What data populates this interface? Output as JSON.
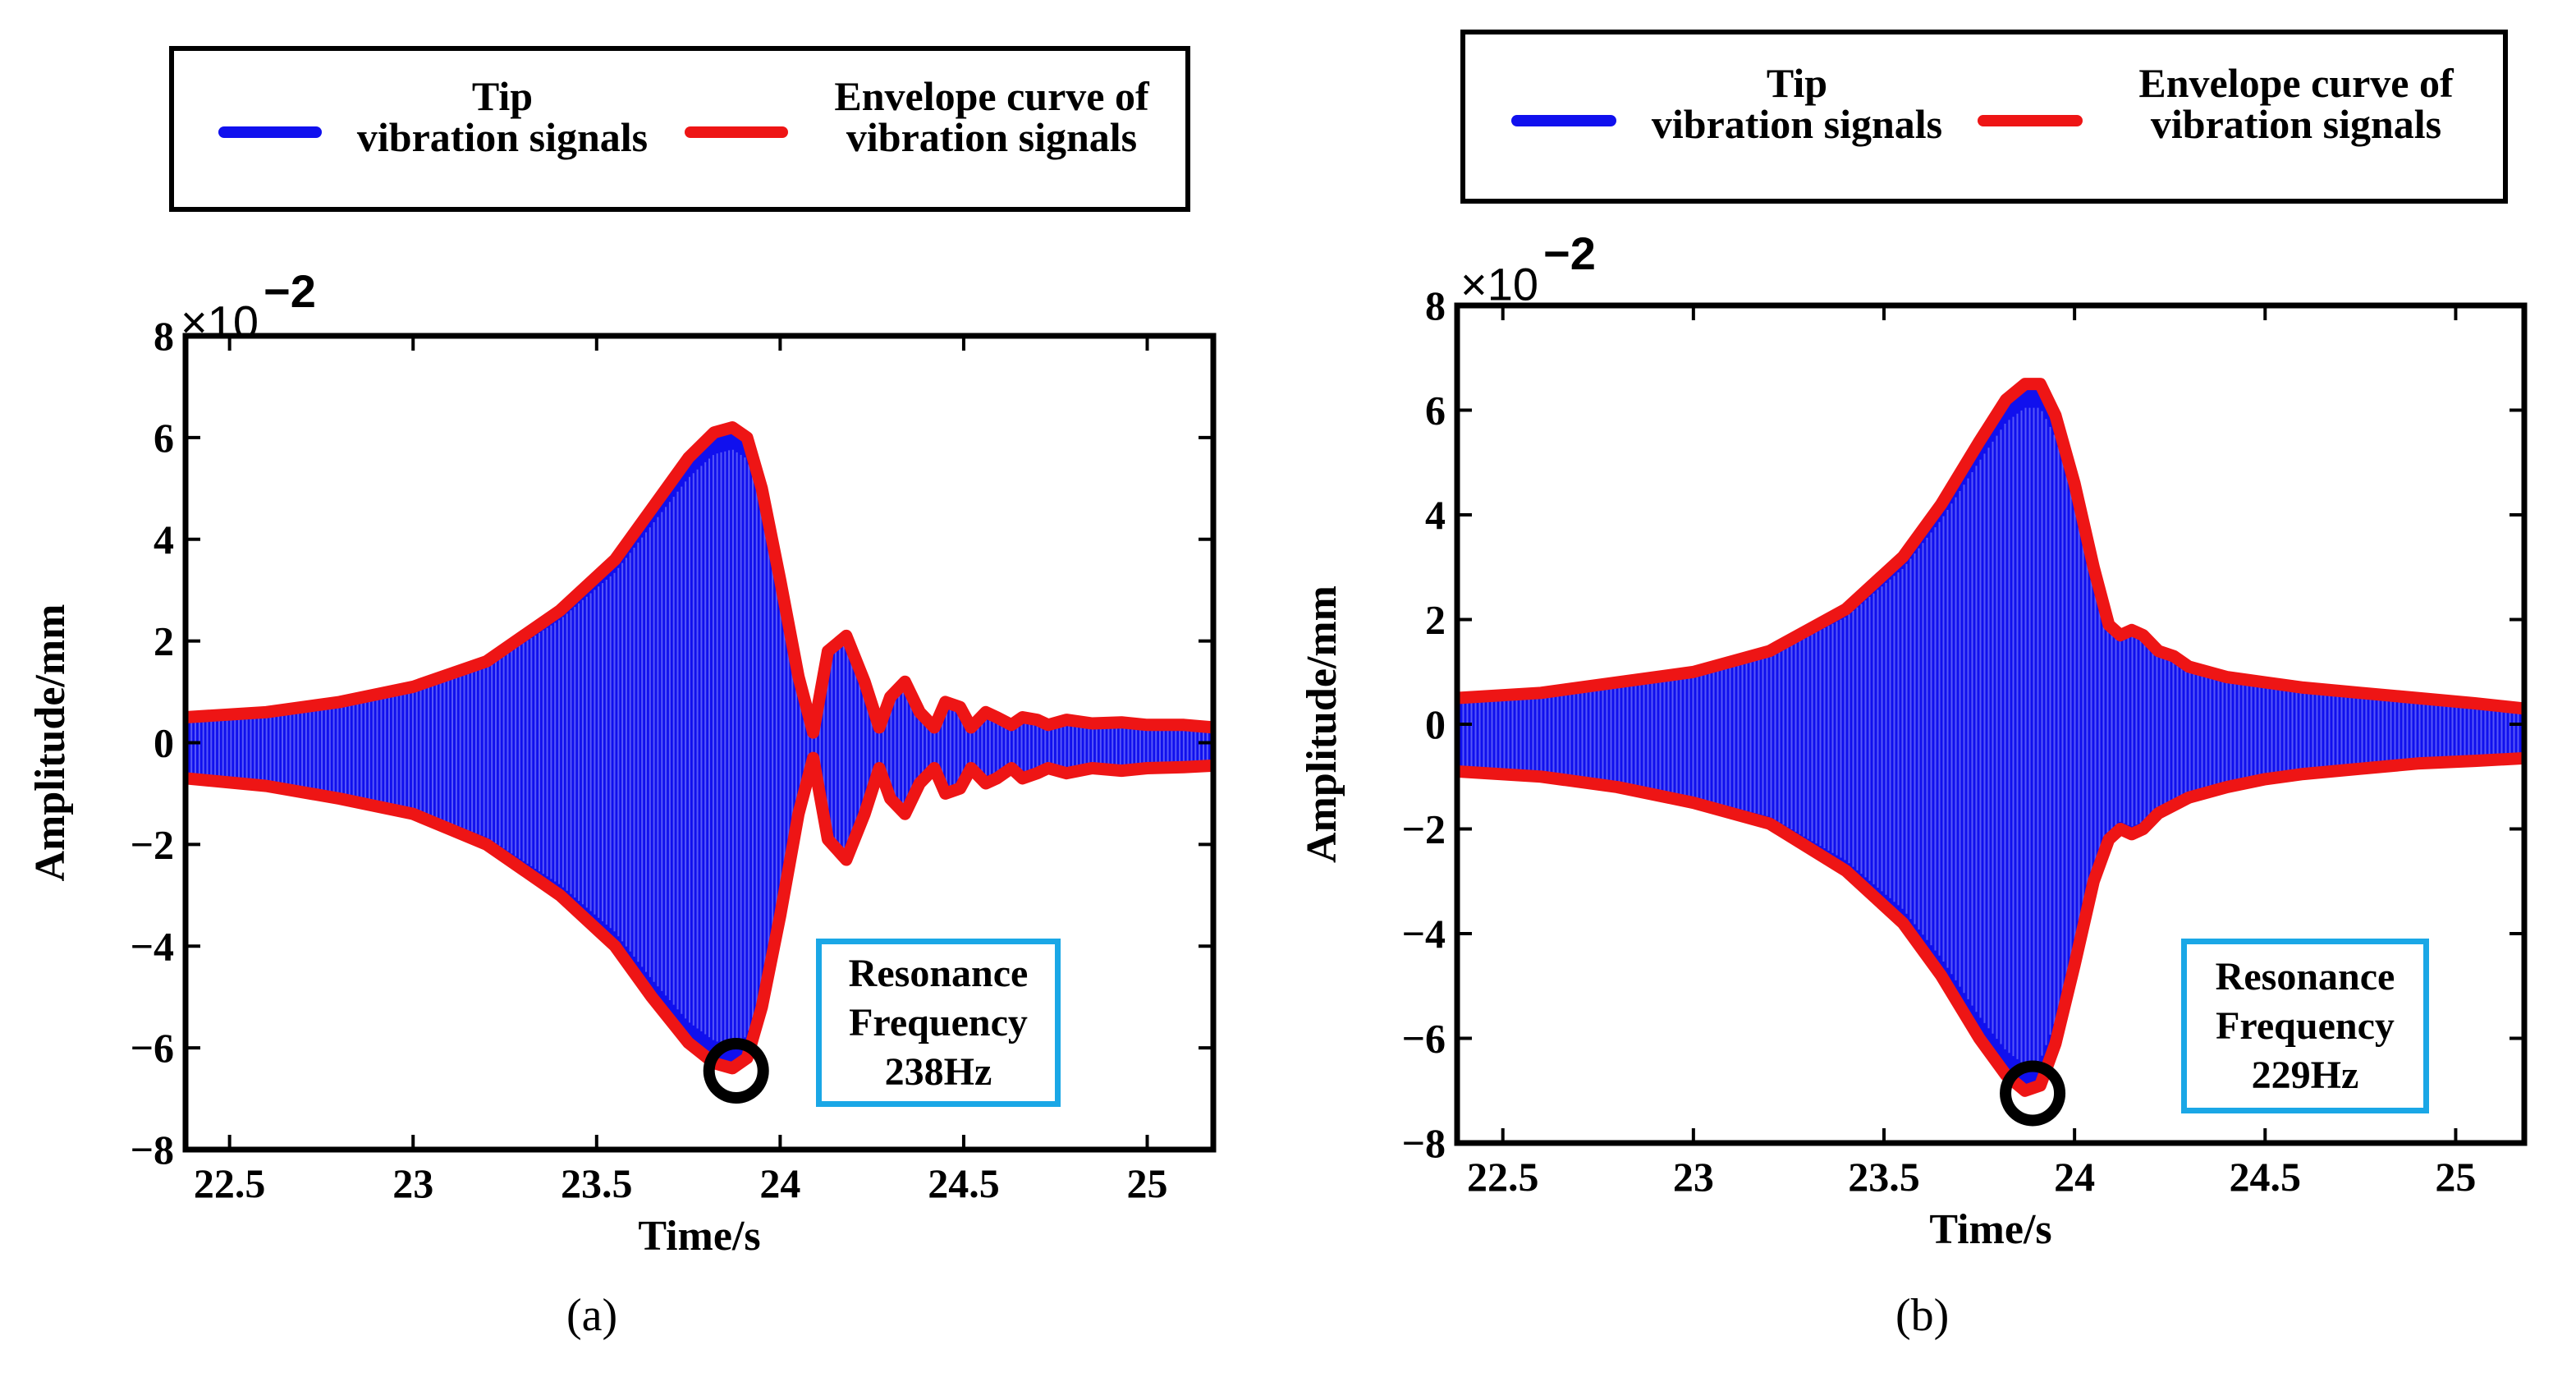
{
  "figure": {
    "colors": {
      "signal": "#1010ee",
      "envelope": "#ee1515",
      "marker": "#000000",
      "box": "#1aa7e6"
    }
  },
  "chart_data": [
    {
      "type": "line",
      "panel": "(a)",
      "xlabel": "Time/s",
      "ylabel": "Amplitude/mm",
      "multiplier": "×10",
      "exponent": "−2",
      "xlim": [
        22.38,
        25.18
      ],
      "ylim": [
        -8,
        8
      ],
      "xticks": [
        22.5,
        23,
        23.5,
        24,
        24.5,
        25
      ],
      "xtick_labels": [
        "22.5",
        "23",
        "23.5",
        "24",
        "24.5",
        "25"
      ],
      "yticks": [
        -8,
        -6,
        -4,
        -2,
        0,
        2,
        4,
        6,
        8
      ],
      "ytick_labels": [
        "−8",
        "−6",
        "−4",
        "−2",
        "0",
        "2",
        "4",
        "6",
        "8"
      ],
      "legend": {
        "signal_label": "Tip\nvibration signals",
        "envelope_label": "Envelope curve of\nvibration signals"
      },
      "series": [
        {
          "name": "Envelope upper",
          "x": [
            22.38,
            22.6,
            22.8,
            23.0,
            23.2,
            23.4,
            23.55,
            23.65,
            23.75,
            23.82,
            23.87,
            23.91,
            23.95,
            24.0,
            24.05,
            24.09,
            24.13,
            24.18,
            24.23,
            24.27,
            24.3,
            24.34,
            24.38,
            24.42,
            24.45,
            24.49,
            24.52,
            24.56,
            24.59,
            24.63,
            24.66,
            24.7,
            24.73,
            24.78,
            24.85,
            24.93,
            25.0,
            25.1,
            25.18
          ],
          "values": [
            0.5,
            0.6,
            0.8,
            1.1,
            1.6,
            2.6,
            3.6,
            4.6,
            5.6,
            6.1,
            6.2,
            6.0,
            5.0,
            3.2,
            1.3,
            0.2,
            1.8,
            2.1,
            1.2,
            0.3,
            0.9,
            1.2,
            0.6,
            0.3,
            0.8,
            0.7,
            0.3,
            0.6,
            0.5,
            0.35,
            0.5,
            0.45,
            0.35,
            0.45,
            0.38,
            0.4,
            0.35,
            0.35,
            0.3
          ]
        },
        {
          "name": "Envelope lower",
          "x": [
            22.38,
            22.6,
            22.8,
            23.0,
            23.2,
            23.4,
            23.55,
            23.65,
            23.75,
            23.82,
            23.87,
            23.91,
            23.95,
            24.0,
            24.05,
            24.09,
            24.13,
            24.18,
            24.23,
            24.27,
            24.3,
            24.34,
            24.38,
            24.42,
            24.45,
            24.49,
            24.52,
            24.56,
            24.59,
            24.63,
            24.66,
            24.7,
            24.73,
            24.78,
            24.85,
            24.93,
            25.0,
            25.1,
            25.18
          ],
          "values": [
            -0.7,
            -0.85,
            -1.1,
            -1.4,
            -2.0,
            -3.0,
            -4.0,
            -5.0,
            -5.9,
            -6.3,
            -6.4,
            -6.2,
            -5.2,
            -3.4,
            -1.4,
            -0.3,
            -1.9,
            -2.3,
            -1.4,
            -0.5,
            -1.1,
            -1.4,
            -0.8,
            -0.5,
            -1.0,
            -0.9,
            -0.5,
            -0.8,
            -0.7,
            -0.5,
            -0.7,
            -0.6,
            -0.5,
            -0.6,
            -0.5,
            -0.55,
            -0.5,
            -0.48,
            -0.45
          ]
        }
      ],
      "marker": {
        "x": 23.88,
        "y": -6.45
      },
      "annotation": {
        "line1": "Resonance",
        "line2": "Frequency",
        "line3": "238Hz"
      }
    },
    {
      "type": "line",
      "panel": "(b)",
      "xlabel": "Time/s",
      "ylabel": "Amplitude/mm",
      "multiplier": "×10",
      "exponent": "−2",
      "xlim": [
        22.38,
        25.18
      ],
      "ylim": [
        -8,
        8
      ],
      "xticks": [
        22.5,
        23,
        23.5,
        24,
        24.5,
        25
      ],
      "xtick_labels": [
        "22.5",
        "23",
        "23.5",
        "24",
        "24.5",
        "25"
      ],
      "yticks": [
        -8,
        -6,
        -4,
        -2,
        0,
        2,
        4,
        6,
        8
      ],
      "ytick_labels": [
        "−8",
        "−6",
        "−4",
        "−2",
        "0",
        "2",
        "4",
        "6",
        "8"
      ],
      "legend": {
        "signal_label": "Tip\nvibration signals",
        "envelope_label": "Envelope curve of\nvibration signals"
      },
      "series": [
        {
          "name": "Envelope upper",
          "x": [
            22.38,
            22.6,
            22.8,
            23.0,
            23.2,
            23.4,
            23.55,
            23.65,
            23.75,
            23.82,
            23.87,
            23.91,
            23.95,
            24.0,
            24.05,
            24.09,
            24.12,
            24.15,
            24.18,
            24.22,
            24.26,
            24.3,
            24.4,
            24.5,
            24.6,
            24.75,
            24.9,
            25.05,
            25.18
          ],
          "values": [
            0.5,
            0.6,
            0.8,
            1.0,
            1.4,
            2.2,
            3.2,
            4.2,
            5.4,
            6.2,
            6.5,
            6.5,
            5.9,
            4.6,
            3.0,
            1.9,
            1.7,
            1.8,
            1.7,
            1.4,
            1.3,
            1.1,
            0.9,
            0.8,
            0.7,
            0.6,
            0.5,
            0.4,
            0.3
          ]
        },
        {
          "name": "Envelope lower",
          "x": [
            22.38,
            22.6,
            22.8,
            23.0,
            23.2,
            23.4,
            23.55,
            23.65,
            23.75,
            23.82,
            23.87,
            23.91,
            23.95,
            24.0,
            24.05,
            24.09,
            24.12,
            24.15,
            24.18,
            24.22,
            24.26,
            24.3,
            24.4,
            24.5,
            24.6,
            24.75,
            24.9,
            25.05,
            25.18
          ],
          "values": [
            -0.9,
            -1.0,
            -1.2,
            -1.5,
            -1.9,
            -2.8,
            -3.8,
            -4.8,
            -6.0,
            -6.7,
            -7.0,
            -6.9,
            -6.1,
            -4.6,
            -3.0,
            -2.2,
            -2.0,
            -2.1,
            -2.0,
            -1.7,
            -1.55,
            -1.4,
            -1.2,
            -1.05,
            -0.95,
            -0.85,
            -0.75,
            -0.7,
            -0.65
          ]
        }
      ],
      "marker": {
        "x": 23.89,
        "y": -7.05
      },
      "annotation": {
        "line1": "Resonance",
        "line2": "Frequency",
        "line3": "229Hz"
      }
    }
  ]
}
